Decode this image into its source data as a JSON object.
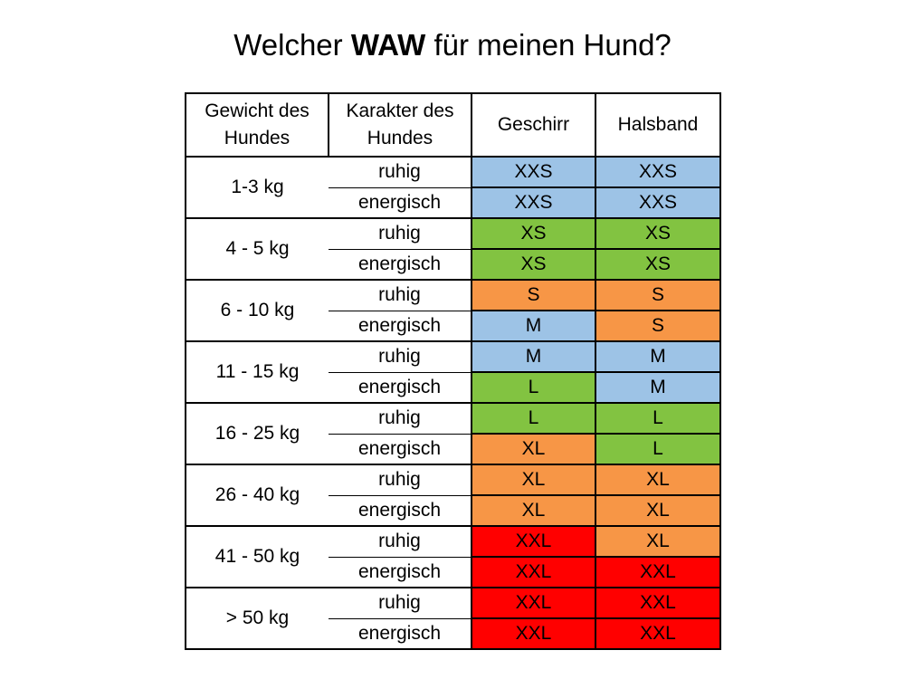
{
  "title": {
    "prefix": "Welcher ",
    "bold": "WAW",
    "suffix": " für meinen Hund?"
  },
  "headers": {
    "weight_line1": "Gewicht des",
    "weight_line2": "Hundes",
    "character_line1": "Karakter des",
    "character_line2": "Hundes",
    "harness": "Geschirr",
    "collar": "Halsband"
  },
  "colors": {
    "blue": "#9dc3e6",
    "green": "#82c341",
    "orange": "#f79646",
    "red": "#ff0000"
  },
  "rows": [
    {
      "weight": "1-3 kg",
      "calm": {
        "label": "ruhig",
        "harness": "XXS",
        "harness_color": "blue",
        "collar": "XXS",
        "collar_color": "blue"
      },
      "energetic": {
        "label": "energisch",
        "harness": "XXS",
        "harness_color": "blue",
        "collar": "XXS",
        "collar_color": "blue"
      }
    },
    {
      "weight": "4 - 5 kg",
      "calm": {
        "label": "ruhig",
        "harness": "XS",
        "harness_color": "green",
        "collar": "XS",
        "collar_color": "green"
      },
      "energetic": {
        "label": "energisch",
        "harness": "XS",
        "harness_color": "green",
        "collar": "XS",
        "collar_color": "green"
      }
    },
    {
      "weight": "6 - 10 kg",
      "calm": {
        "label": "ruhig",
        "harness": "S",
        "harness_color": "orange",
        "collar": "S",
        "collar_color": "orange"
      },
      "energetic": {
        "label": "energisch",
        "harness": "M",
        "harness_color": "blue",
        "collar": "S",
        "collar_color": "orange"
      }
    },
    {
      "weight": "11 - 15 kg",
      "calm": {
        "label": "ruhig",
        "harness": "M",
        "harness_color": "blue",
        "collar": "M",
        "collar_color": "blue"
      },
      "energetic": {
        "label": "energisch",
        "harness": "L",
        "harness_color": "green",
        "collar": "M",
        "collar_color": "blue"
      }
    },
    {
      "weight": "16 - 25 kg",
      "calm": {
        "label": "ruhig",
        "harness": "L",
        "harness_color": "green",
        "collar": "L",
        "collar_color": "green"
      },
      "energetic": {
        "label": "energisch",
        "harness": "XL",
        "harness_color": "orange",
        "collar": "L",
        "collar_color": "green"
      }
    },
    {
      "weight": "26 - 40 kg",
      "calm": {
        "label": "ruhig",
        "harness": "XL",
        "harness_color": "orange",
        "collar": "XL",
        "collar_color": "orange"
      },
      "energetic": {
        "label": "energisch",
        "harness": "XL",
        "harness_color": "orange",
        "collar": "XL",
        "collar_color": "orange"
      }
    },
    {
      "weight": "41 - 50 kg",
      "calm": {
        "label": "ruhig",
        "harness": "XXL",
        "harness_color": "red",
        "collar": "XL",
        "collar_color": "orange"
      },
      "energetic": {
        "label": "energisch",
        "harness": "XXL",
        "harness_color": "red",
        "collar": "XXL",
        "collar_color": "red"
      }
    },
    {
      "weight": ">  50 kg",
      "calm": {
        "label": "ruhig",
        "harness": "XXL",
        "harness_color": "red",
        "collar": "XXL",
        "collar_color": "red"
      },
      "energetic": {
        "label": "energisch",
        "harness": "XXL",
        "harness_color": "red",
        "collar": "XXL",
        "collar_color": "red"
      }
    }
  ]
}
